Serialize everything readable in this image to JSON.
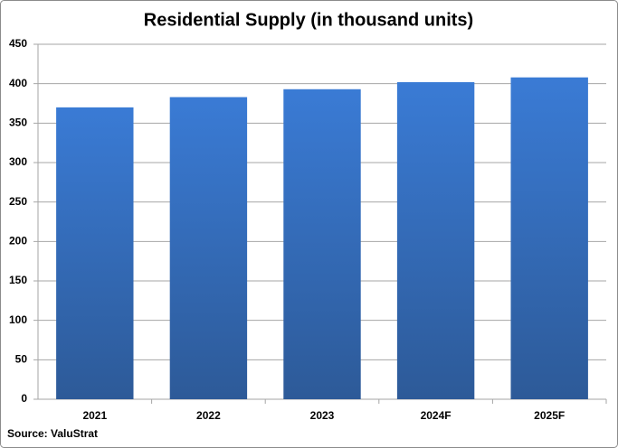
{
  "chart_data": {
    "type": "bar",
    "title": "Residential Supply (in thousand units)",
    "categories": [
      "2021",
      "2022",
      "2023",
      "2024F",
      "2025F"
    ],
    "values": [
      370,
      383,
      393,
      402,
      408
    ],
    "color": "#3a7bd5",
    "ylim": [
      0,
      450
    ],
    "yticks": [
      0,
      50,
      100,
      150,
      200,
      250,
      300,
      350,
      400,
      450
    ],
    "grid": true,
    "source": "Source: ValuStrat"
  }
}
